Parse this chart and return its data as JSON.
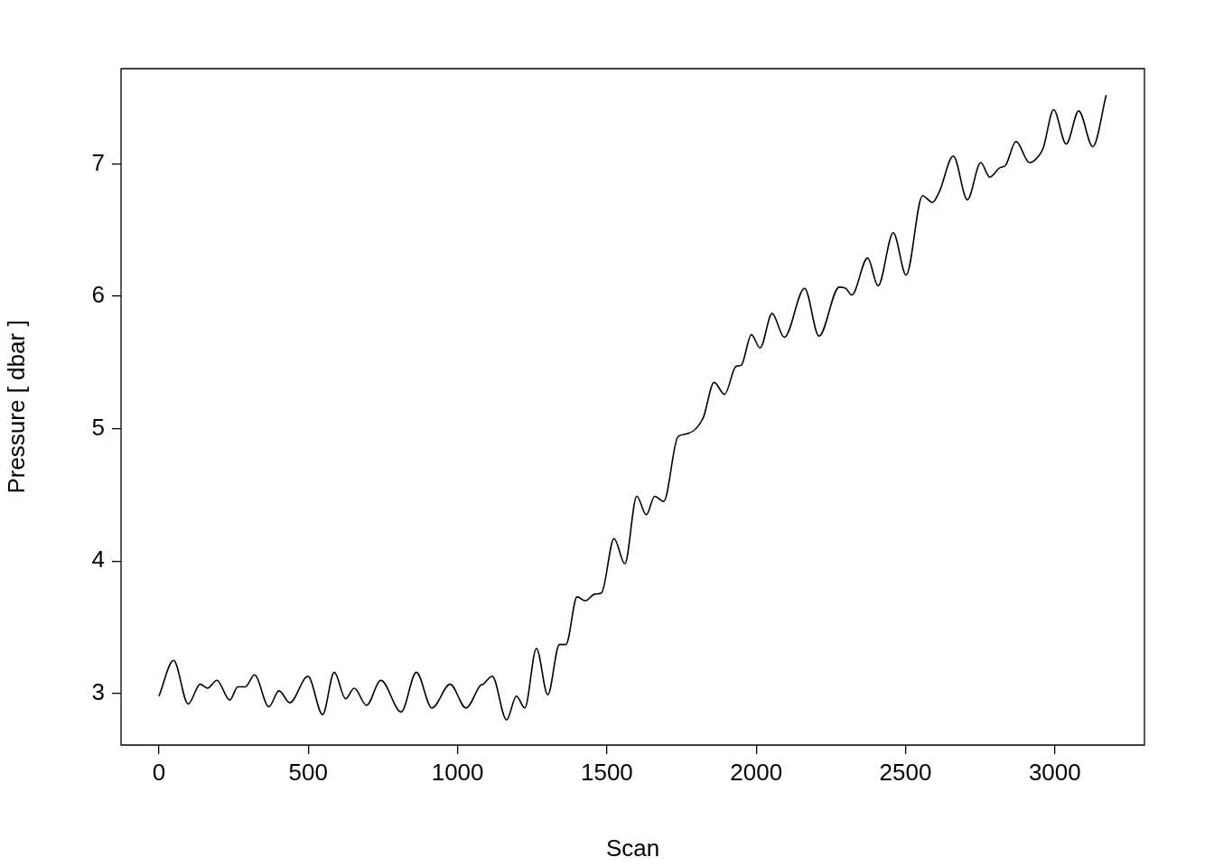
{
  "chart_data": {
    "type": "line",
    "xlabel": "Scan",
    "ylabel": "Pressure [ dbar ]",
    "xlim": [
      -127,
      3300
    ],
    "ylim": [
      2.61,
      7.72
    ],
    "xticks": [
      0,
      500,
      1000,
      1500,
      2000,
      2500,
      3000
    ],
    "yticks": [
      3,
      4,
      5,
      6,
      7
    ],
    "series": [
      {
        "color": "#000000",
        "x": [
          0,
          49,
          98,
          138,
          163,
          194,
          237,
          264,
          289,
          320,
          368,
          402,
          438,
          499,
          548,
          587,
          625,
          654,
          695,
          743,
          811,
          862,
          914,
          975,
          1028,
          1076,
          1086,
          1116,
          1164,
          1197,
          1225,
          1264,
          1302,
          1341,
          1363,
          1400,
          1428,
          1459,
          1482,
          1524,
          1560,
          1600,
          1632,
          1660,
          1690,
          1738,
          1766,
          1822,
          1859,
          1894,
          1932,
          1950,
          1984,
          2013,
          2053,
          2094,
          2162,
          2210,
          2278,
          2300,
          2320,
          2373,
          2408,
          2459,
          2502,
          2557,
          2590,
          2613,
          2660,
          2707,
          2752,
          2782,
          2815,
          2835,
          2870,
          2915,
          2946,
          2961,
          2996,
          3038,
          3080,
          3127,
          3172
        ],
        "values": [
          2.98,
          3.25,
          2.92,
          3.07,
          3.04,
          3.1,
          2.95,
          3.05,
          3.05,
          3.14,
          2.9,
          3.02,
          2.93,
          3.13,
          2.84,
          3.16,
          2.96,
          3.04,
          2.91,
          3.1,
          2.86,
          3.16,
          2.89,
          3.07,
          2.89,
          3.06,
          3.07,
          3.13,
          2.8,
          2.98,
          2.89,
          3.34,
          2.99,
          3.37,
          3.37,
          3.73,
          3.7,
          3.75,
          3.76,
          4.17,
          3.98,
          4.49,
          4.35,
          4.49,
          4.45,
          4.94,
          4.96,
          5.08,
          5.35,
          5.26,
          5.47,
          5.48,
          5.71,
          5.61,
          5.87,
          5.69,
          6.06,
          5.7,
          6.07,
          6.06,
          6.01,
          6.29,
          6.08,
          6.48,
          6.16,
          6.76,
          6.71,
          6.79,
          7.06,
          6.73,
          7.01,
          6.9,
          6.97,
          6.99,
          7.17,
          7.01,
          7.06,
          7.12,
          7.41,
          7.15,
          7.4,
          7.13,
          7.52
        ]
      }
    ]
  }
}
